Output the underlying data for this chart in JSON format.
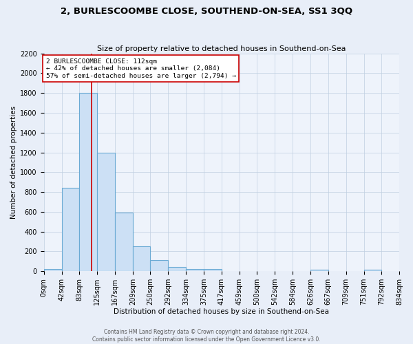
{
  "title": "2, BURLESCOOMBE CLOSE, SOUTHEND-ON-SEA, SS1 3QQ",
  "subtitle": "Size of property relative to detached houses in Southend-on-Sea",
  "xlabel": "Distribution of detached houses by size in Southend-on-Sea",
  "ylabel": "Number of detached properties",
  "footer_line1": "Contains HM Land Registry data © Crown copyright and database right 2024.",
  "footer_line2": "Contains public sector information licensed under the Open Government Licence v3.0.",
  "bin_edges": [
    0,
    42,
    83,
    125,
    167,
    209,
    250,
    292,
    334,
    375,
    417,
    459,
    500,
    542,
    584,
    626,
    667,
    709,
    751,
    792,
    834
  ],
  "bin_counts": [
    25,
    840,
    1800,
    1200,
    590,
    255,
    115,
    40,
    22,
    20,
    0,
    0,
    0,
    0,
    0,
    15,
    0,
    0,
    15,
    0
  ],
  "vline_x": 112,
  "vline_color": "#cc0000",
  "bar_fill_color": "#cce0f5",
  "bar_edge_color": "#6aaad4",
  "annotation_title": "2 BURLESCOOMBE CLOSE: 112sqm",
  "annotation_line1": "← 42% of detached houses are smaller (2,084)",
  "annotation_line2": "57% of semi-detached houses are larger (2,794) →",
  "annotation_box_edge_color": "#cc0000",
  "ylim": [
    0,
    2200
  ],
  "yticks": [
    0,
    200,
    400,
    600,
    800,
    1000,
    1200,
    1400,
    1600,
    1800,
    2000,
    2200
  ],
  "xtick_labels": [
    "0sqm",
    "42sqm",
    "83sqm",
    "125sqm",
    "167sqm",
    "209sqm",
    "250sqm",
    "292sqm",
    "334sqm",
    "375sqm",
    "417sqm",
    "459sqm",
    "500sqm",
    "542sqm",
    "584sqm",
    "626sqm",
    "667sqm",
    "709sqm",
    "751sqm",
    "792sqm",
    "834sqm"
  ],
  "background_color": "#e8eef8",
  "plot_bg_color": "#eef3fb",
  "title_fontsize": 9.5,
  "subtitle_fontsize": 8,
  "axis_label_fontsize": 7.5,
  "tick_fontsize": 7,
  "footer_fontsize": 5.5
}
